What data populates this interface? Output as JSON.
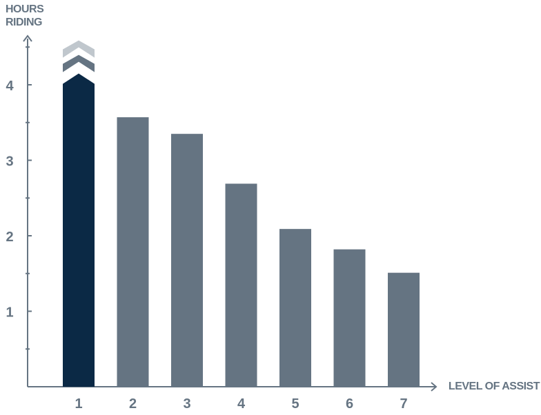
{
  "chart_data": {
    "type": "bar",
    "categories": [
      "1",
      "2",
      "3",
      "4",
      "5",
      "6",
      "7"
    ],
    "values": [
      4.15,
      3.57,
      3.35,
      2.69,
      2.09,
      1.82,
      1.51
    ],
    "y_ticks": [
      1,
      2,
      3,
      4
    ],
    "ylim": [
      0,
      4.8
    ],
    "ylabel_line1": "HOURS",
    "ylabel_line2": "RIDING",
    "xlabel": "LEVEL OF ASSIST",
    "colors": {
      "highlight_bar": "#0b2945",
      "bar": "#657482",
      "chevron_light": "#c0c7cd",
      "axis": "#657482",
      "text": "#657482"
    },
    "highlight_index": 0,
    "extension_marker": "chevrons-up",
    "grid": false
  }
}
